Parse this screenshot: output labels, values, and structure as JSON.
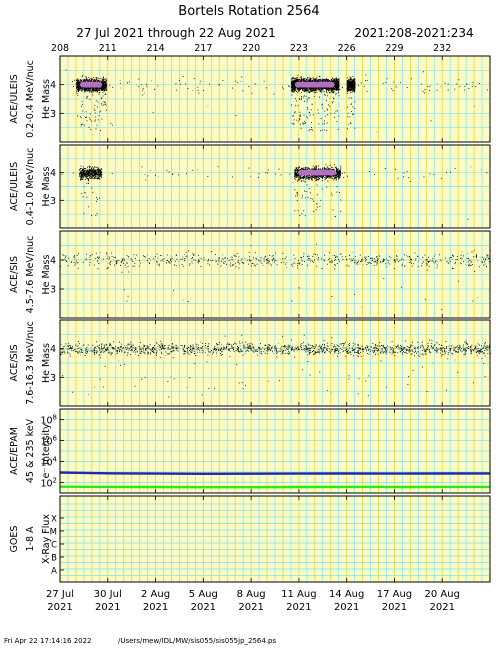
{
  "header": {
    "title": "Bortels Rotation 2564",
    "date_range": "27 Jul 2021 through 22 Aug 2021",
    "doy_range": "2021:208-2021:234"
  },
  "footer": {
    "timestamp": "Fri Apr 22 17:14:16 2022",
    "path": "/Users/mew/IDL/MW/sis055/sis055jp_2564.ps"
  },
  "colors": {
    "panel_background": "#fdfbc4",
    "yellow_gridline": "#e7d94a",
    "cyan_gridline": "#7fe3f0",
    "scatter_points": "#000000",
    "density_core": "#c77ad8",
    "epam_high_channel": "#1f2aa8",
    "epam_low_channel": "#2ee81d"
  },
  "chart_data": {
    "type": "scatter",
    "x_doy_labels": [
      "208",
      "211",
      "214",
      "217",
      "220",
      "223",
      "226",
      "229",
      "232"
    ],
    "x_date_labels": [
      {
        "day": "27 Jul",
        "year": "2021"
      },
      {
        "day": "30 Jul",
        "year": "2021"
      },
      {
        "day": "2 Aug",
        "year": "2021"
      },
      {
        "day": "5 Aug",
        "year": "2021"
      },
      {
        "day": "8 Aug",
        "year": "2021"
      },
      {
        "day": "11 Aug",
        "year": "2021"
      },
      {
        "day": "14 Aug",
        "year": "2021"
      },
      {
        "day": "17 Aug",
        "year": "2021"
      },
      {
        "day": "20 Aug",
        "year": "2021"
      }
    ],
    "xlim": [
      208,
      235
    ],
    "panels": [
      {
        "instrument": "ACE/ULEIS",
        "energy": "0.2-0.4 MeV/nuc",
        "quantity": "He Mass",
        "yticks": [
          "4",
          "3"
        ],
        "ylim": [
          2,
          5
        ],
        "core_mass": 4.0,
        "background_rate": "low",
        "enhancements": [
          {
            "doy_start": 209.0,
            "doy_end": 210.9,
            "intensity": "high"
          },
          {
            "doy_start": 222.5,
            "doy_end": 225.5,
            "intensity": "very high"
          },
          {
            "doy_start": 226.0,
            "doy_end": 226.5,
            "intensity": "moderate"
          }
        ]
      },
      {
        "instrument": "ACE/ULEIS",
        "energy": "0.4-1.0 MeV/nuc",
        "quantity": "He Mass",
        "yticks": [
          "4",
          "3"
        ],
        "ylim": [
          2,
          5
        ],
        "core_mass": 4.0,
        "background_rate": "very low",
        "enhancements": [
          {
            "doy_start": 209.2,
            "doy_end": 210.6,
            "intensity": "moderate"
          },
          {
            "doy_start": 222.7,
            "doy_end": 225.6,
            "intensity": "high"
          }
        ]
      },
      {
        "instrument": "ACE/SIS",
        "energy": "4.5-7.6 MeV/nuc",
        "quantity": "He Mass",
        "yticks": [
          "4",
          "3"
        ],
        "ylim": [
          2,
          5
        ],
        "core_mass": 4.0,
        "background_rate": "moderate",
        "enhancements": []
      },
      {
        "instrument": "ACE/SIS",
        "energy": "7.6-16.3 MeV/nuc",
        "quantity": "He Mass",
        "yticks": [
          "4",
          "3"
        ],
        "ylim": [
          2,
          5
        ],
        "core_mass": 4.0,
        "background_rate": "high",
        "enhancements": []
      },
      {
        "instrument": "ACE/EPAM",
        "quantity": "e⁻ intensity",
        "energy": "45 & 235 keV",
        "ylog": true,
        "ylim": [
          10,
          1000000000
        ],
        "yticks": [
          {
            "base": "10",
            "exp": "8"
          },
          {
            "base": "10",
            "exp": "6"
          },
          {
            "base": "10",
            "exp": "4"
          },
          {
            "base": "10",
            "exp": "2"
          }
        ],
        "series": [
          {
            "x": [
              208,
              211,
              214,
              217,
              220,
              223,
              226,
              229,
              232,
              235
            ],
            "y": [
              900,
              750,
              700,
              680,
              690,
              700,
              720,
              710,
              720,
              730
            ]
          },
          {
            "x": [
              208,
              211,
              214,
              217,
              220,
              223,
              226,
              229,
              232,
              235
            ],
            "y": [
              40,
              38,
              37,
              36,
              36,
              37,
              38,
              37,
              38,
              38
            ]
          }
        ]
      },
      {
        "instrument": "GOES",
        "quantity": "X-Ray Flux",
        "energy": "1-8 A",
        "yticks": [
          "X",
          "M",
          "C",
          "B",
          "A"
        ],
        "series": []
      }
    ]
  }
}
